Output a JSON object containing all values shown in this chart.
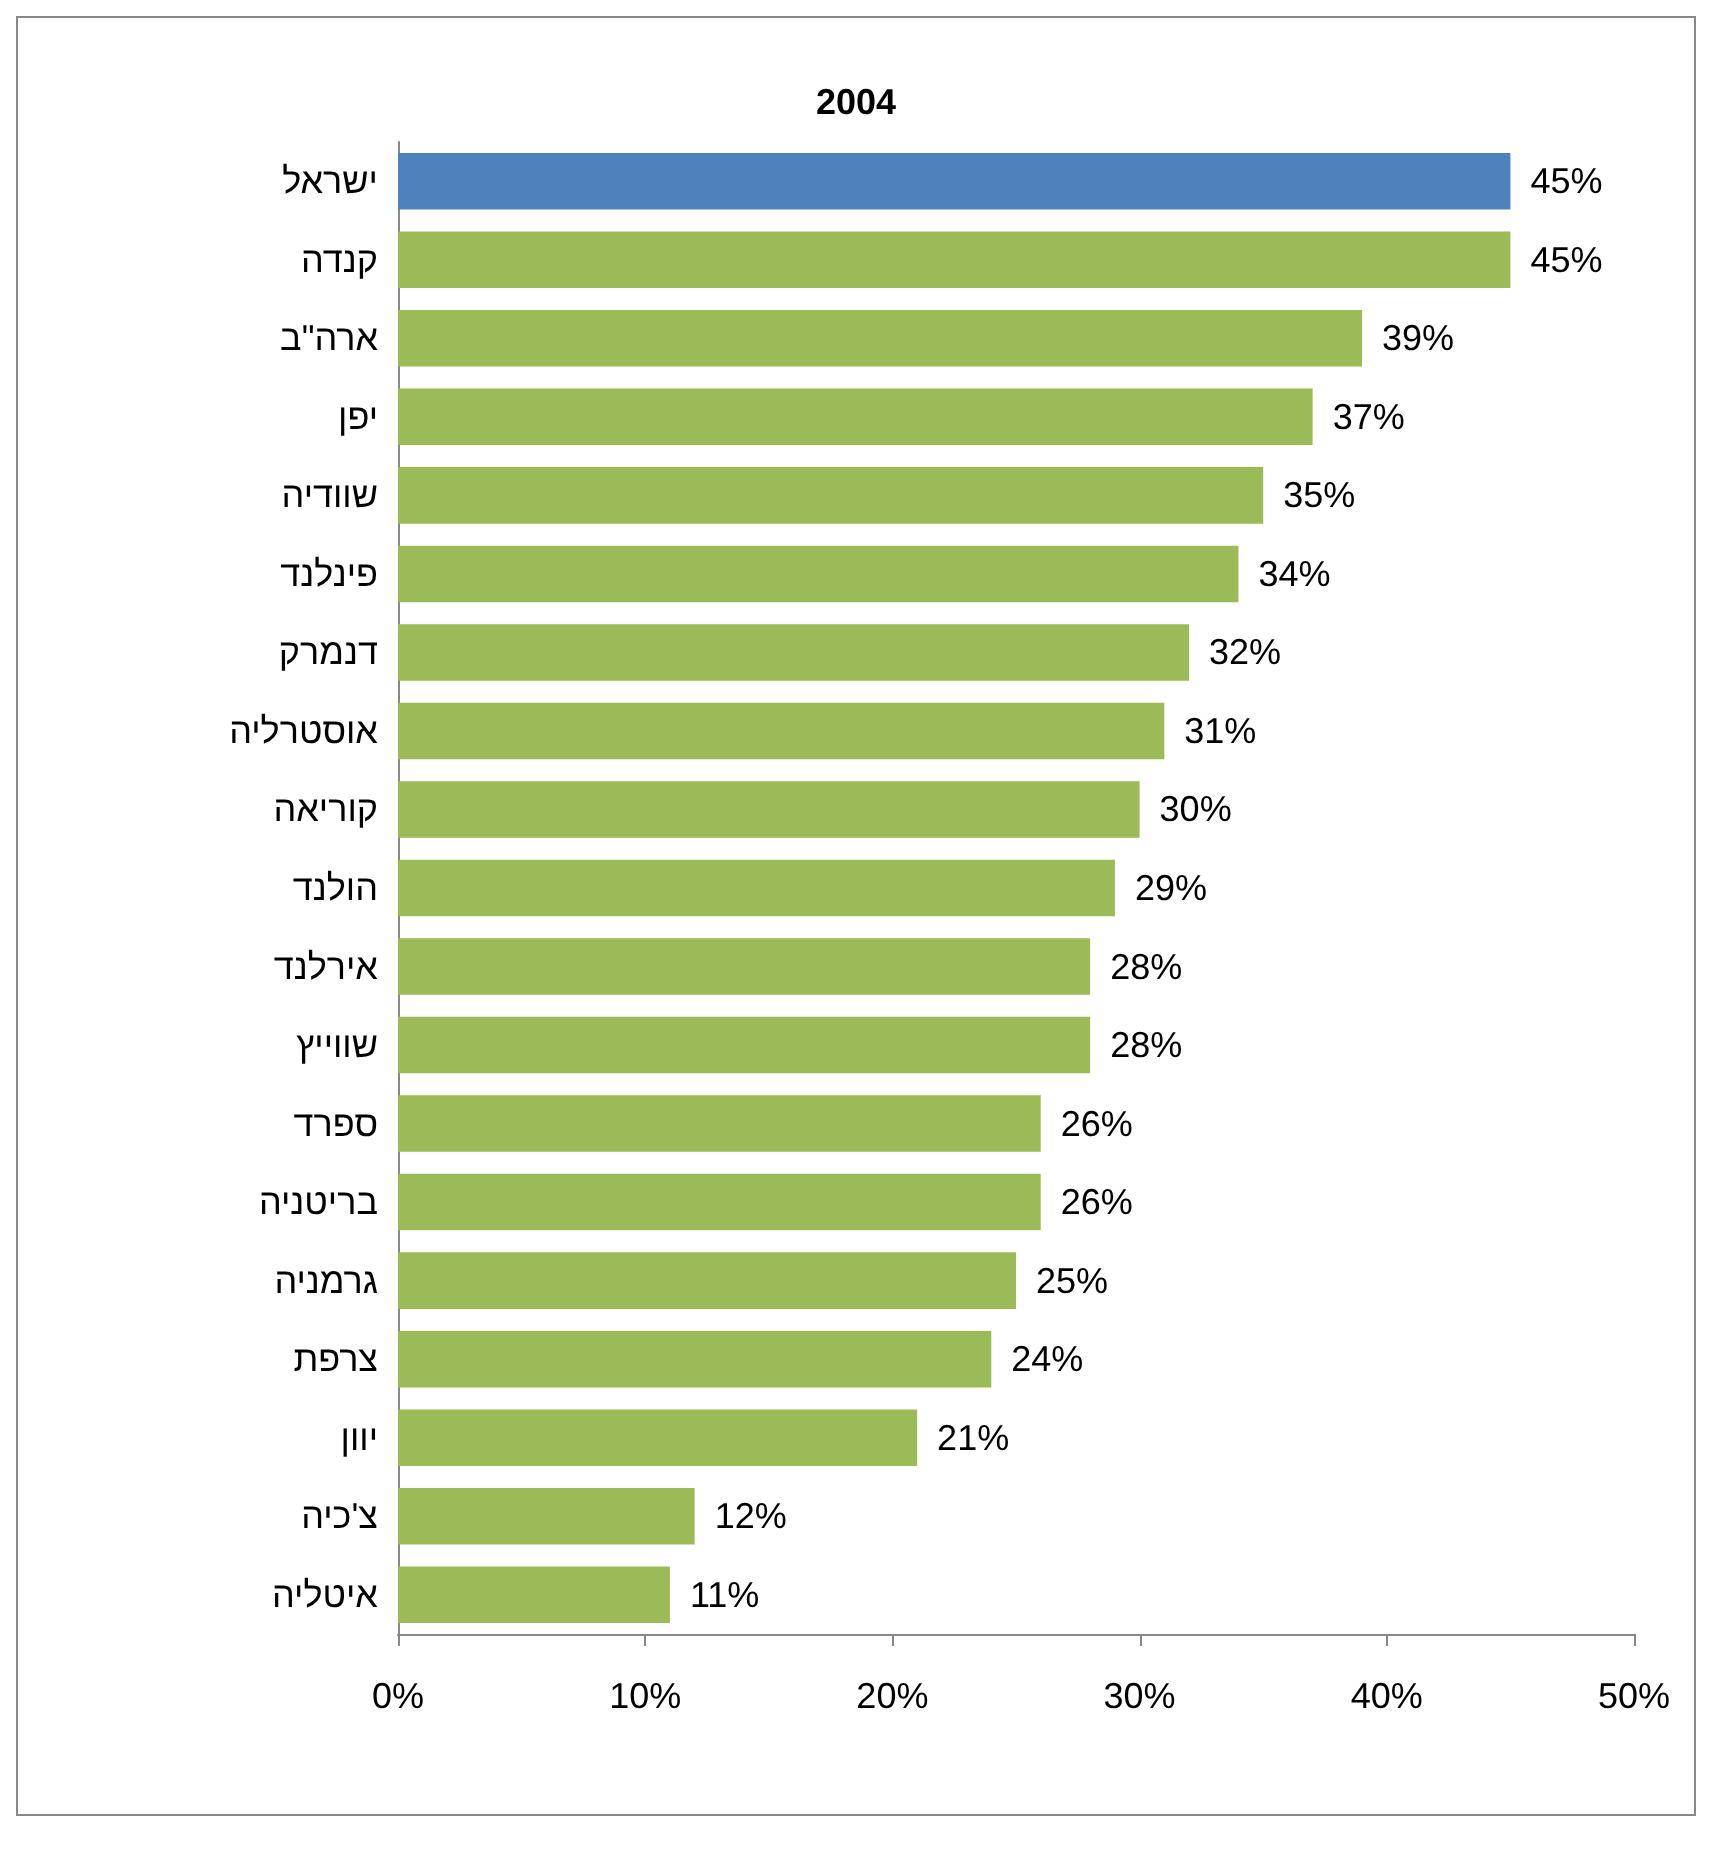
{
  "chart_data": {
    "type": "bar",
    "orientation": "horizontal",
    "title": "2004",
    "categories": [
      "ישראל",
      "קנדה",
      "ארה\"ב",
      "יפן",
      "שוודיה",
      "פינלנד",
      "דנמרק",
      "אוסטרליה",
      "קוריאה",
      "הולנד",
      "אירלנד",
      "שווייץ",
      "ספרד",
      "בריטניה",
      "גרמניה",
      "צרפת",
      "יוון",
      "צ'כיה",
      "איטליה"
    ],
    "values": [
      45,
      45,
      39,
      37,
      35,
      34,
      32,
      31,
      30,
      29,
      28,
      28,
      26,
      26,
      25,
      24,
      21,
      12,
      11
    ],
    "value_labels": [
      "45%",
      "45%",
      "39%",
      "37%",
      "35%",
      "34%",
      "32%",
      "31%",
      "30%",
      "29%",
      "28%",
      "28%",
      "26%",
      "26%",
      "25%",
      "24%",
      "21%",
      "12%",
      "11%"
    ],
    "colors": [
      "#4f81bd",
      "#9bbb59",
      "#9bbb59",
      "#9bbb59",
      "#9bbb59",
      "#9bbb59",
      "#9bbb59",
      "#9bbb59",
      "#9bbb59",
      "#9bbb59",
      "#9bbb59",
      "#9bbb59",
      "#9bbb59",
      "#9bbb59",
      "#9bbb59",
      "#9bbb59",
      "#9bbb59",
      "#9bbb59",
      "#9bbb59"
    ],
    "xlim": [
      0,
      50
    ],
    "xticks": [
      {
        "value": 0,
        "label": "0%"
      },
      {
        "value": 10,
        "label": "10%"
      },
      {
        "value": 20,
        "label": "20%"
      },
      {
        "value": 30,
        "label": "30%"
      },
      {
        "value": 40,
        "label": "40%"
      },
      {
        "value": 50,
        "label": "50%"
      }
    ],
    "grid": false
  }
}
